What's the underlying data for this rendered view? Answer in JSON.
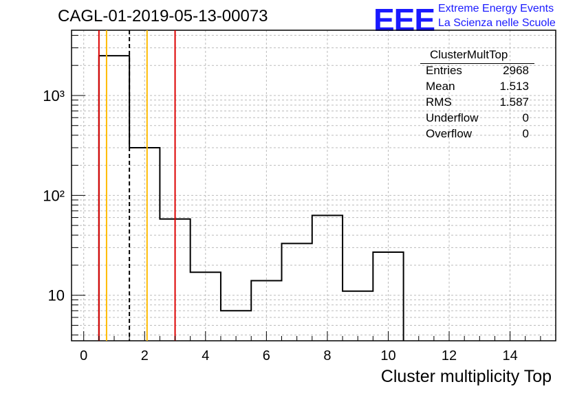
{
  "title": "CAGL-01-2019-05-13-00073",
  "logo": {
    "text": "EEE",
    "line1": "Extreme Energy Events",
    "line2": "La Scienza nelle Scuole",
    "color": "#1a1aff"
  },
  "stats": {
    "name": "ClusterMultTop",
    "rows": [
      {
        "label": "Entries",
        "value": "2968"
      },
      {
        "label": "Mean",
        "value": "1.513"
      },
      {
        "label": "RMS",
        "value": "1.587"
      },
      {
        "label": "Underflow",
        "value": "0"
      },
      {
        "label": "Overflow",
        "value": "0"
      }
    ]
  },
  "chart_data": {
    "type": "bar",
    "histogram": true,
    "xlabel": "Cluster multiplicity Top",
    "ylabel": "",
    "xlim": [
      -0.4,
      15.5
    ],
    "ylim": [
      3.5,
      4500
    ],
    "ylog": true,
    "grid": true,
    "bin_edges": [
      0.5,
      1.5,
      2.5,
      3.5,
      4.5,
      5.5,
      6.5,
      7.5,
      8.5,
      9.5,
      10.5
    ],
    "values": [
      2500,
      300,
      58,
      17,
      7,
      14,
      33,
      63,
      11,
      27
    ],
    "xticks": [
      0,
      2,
      4,
      6,
      8,
      10,
      12,
      14
    ],
    "yticks": [
      {
        "value": 10,
        "label": "10"
      },
      {
        "value": 100,
        "label": "10²"
      },
      {
        "value": 1000,
        "label": "10³"
      }
    ],
    "vlines": [
      {
        "x": 0.5,
        "color": "#dd0000",
        "style": "solid"
      },
      {
        "x": 0.75,
        "color": "#ffbb00",
        "style": "solid"
      },
      {
        "x": 1.5,
        "color": "#000000",
        "style": "dashed"
      },
      {
        "x": 2.08,
        "color": "#ffbb00",
        "style": "solid"
      },
      {
        "x": 3.0,
        "color": "#dd0000",
        "style": "solid"
      }
    ],
    "legend": "top-right"
  }
}
